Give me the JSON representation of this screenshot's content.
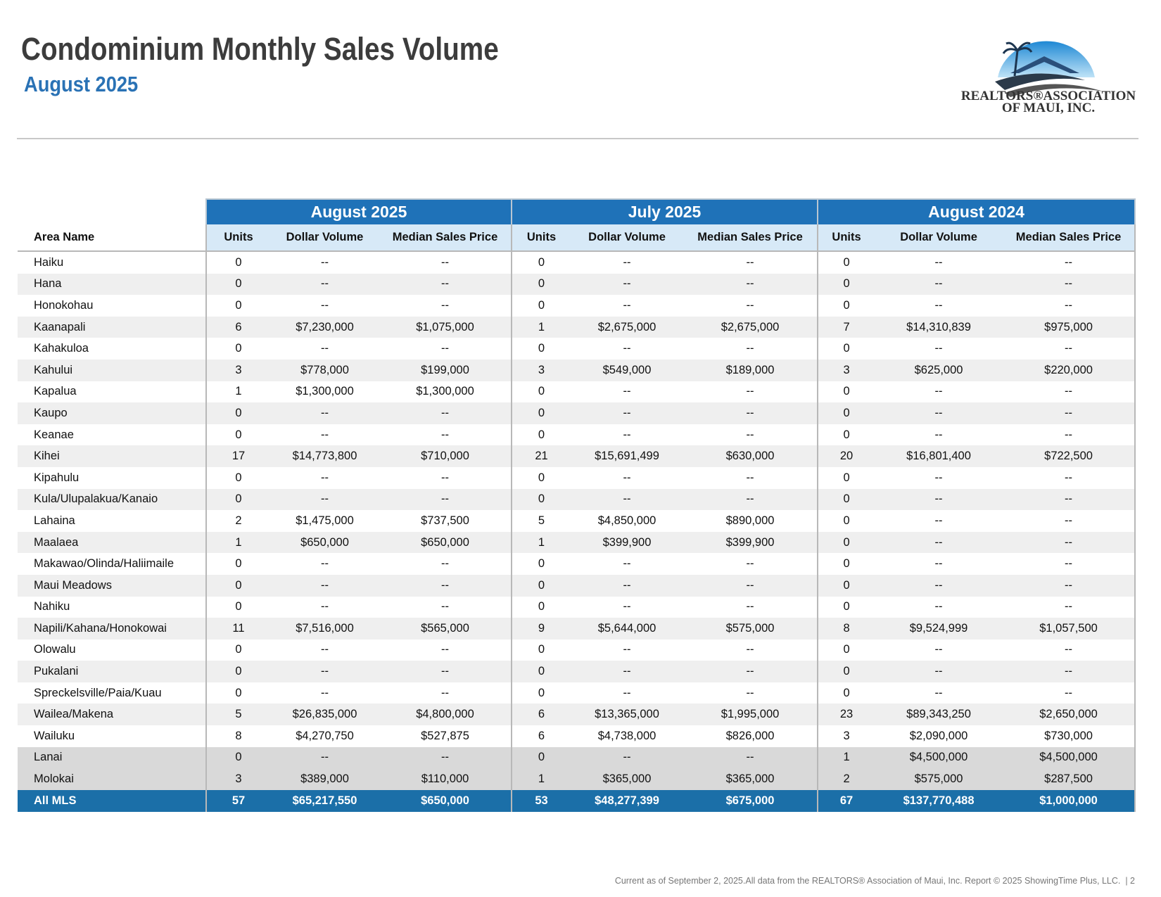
{
  "header": {
    "title": "Condominium Monthly Sales Volume",
    "subtitle": "August 2025"
  },
  "logo": {
    "line1": "REALTORS®ASSOCIATION",
    "line2": "OF MAUI, INC."
  },
  "table": {
    "group_headers": [
      "August 2025",
      "July 2025",
      "August 2024"
    ],
    "column_headers": [
      "Area Name",
      "Units",
      "Dollar Volume",
      "Median Sales Price",
      "Units",
      "Dollar Volume",
      "Median Sales Price",
      "Units",
      "Dollar Volume",
      "Median Sales Price"
    ],
    "rows": [
      [
        "Haiku",
        0,
        "--",
        "--",
        0,
        "--",
        "--",
        0,
        "--",
        "--"
      ],
      [
        "Hana",
        0,
        "--",
        "--",
        0,
        "--",
        "--",
        0,
        "--",
        "--"
      ],
      [
        "Honokohau",
        0,
        "--",
        "--",
        0,
        "--",
        "--",
        0,
        "--",
        "--"
      ],
      [
        "Kaanapali",
        6,
        "$7,230,000",
        "$1,075,000",
        1,
        "$2,675,000",
        "$2,675,000",
        7,
        "$14,310,839",
        "$975,000"
      ],
      [
        "Kahakuloa",
        0,
        "--",
        "--",
        0,
        "--",
        "--",
        0,
        "--",
        "--"
      ],
      [
        "Kahului",
        3,
        "$778,000",
        "$199,000",
        3,
        "$549,000",
        "$189,000",
        3,
        "$625,000",
        "$220,000"
      ],
      [
        "Kapalua",
        1,
        "$1,300,000",
        "$1,300,000",
        0,
        "--",
        "--",
        0,
        "--",
        "--"
      ],
      [
        "Kaupo",
        0,
        "--",
        "--",
        0,
        "--",
        "--",
        0,
        "--",
        "--"
      ],
      [
        "Keanae",
        0,
        "--",
        "--",
        0,
        "--",
        "--",
        0,
        "--",
        "--"
      ],
      [
        "Kihei",
        17,
        "$14,773,800",
        "$710,000",
        21,
        "$15,691,499",
        "$630,000",
        20,
        "$16,801,400",
        "$722,500"
      ],
      [
        "Kipahulu",
        0,
        "--",
        "--",
        0,
        "--",
        "--",
        0,
        "--",
        "--"
      ],
      [
        "Kula/Ulupalakua/Kanaio",
        0,
        "--",
        "--",
        0,
        "--",
        "--",
        0,
        "--",
        "--"
      ],
      [
        "Lahaina",
        2,
        "$1,475,000",
        "$737,500",
        5,
        "$4,850,000",
        "$890,000",
        0,
        "--",
        "--"
      ],
      [
        "Maalaea",
        1,
        "$650,000",
        "$650,000",
        1,
        "$399,900",
        "$399,900",
        0,
        "--",
        "--"
      ],
      [
        "Makawao/Olinda/Haliimaile",
        0,
        "--",
        "--",
        0,
        "--",
        "--",
        0,
        "--",
        "--"
      ],
      [
        "Maui Meadows",
        0,
        "--",
        "--",
        0,
        "--",
        "--",
        0,
        "--",
        "--"
      ],
      [
        "Nahiku",
        0,
        "--",
        "--",
        0,
        "--",
        "--",
        0,
        "--",
        "--"
      ],
      [
        "Napili/Kahana/Honokowai",
        11,
        "$7,516,000",
        "$565,000",
        9,
        "$5,644,000",
        "$575,000",
        8,
        "$9,524,999",
        "$1,057,500"
      ],
      [
        "Olowalu",
        0,
        "--",
        "--",
        0,
        "--",
        "--",
        0,
        "--",
        "--"
      ],
      [
        "Pukalani",
        0,
        "--",
        "--",
        0,
        "--",
        "--",
        0,
        "--",
        "--"
      ],
      [
        "Spreckelsville/Paia/Kuau",
        0,
        "--",
        "--",
        0,
        "--",
        "--",
        0,
        "--",
        "--"
      ],
      [
        "Wailea/Makena",
        5,
        "$26,835,000",
        "$4,800,000",
        6,
        "$13,365,000",
        "$1,995,000",
        23,
        "$89,343,250",
        "$2,650,000"
      ],
      [
        "Wailuku",
        8,
        "$4,270,750",
        "$527,875",
        6,
        "$4,738,000",
        "$826,000",
        3,
        "$2,090,000",
        "$730,000"
      ]
    ],
    "island_rows": [
      [
        "Lanai",
        0,
        "--",
        "--",
        0,
        "--",
        "--",
        1,
        "$4,500,000",
        "$4,500,000"
      ],
      [
        "Molokai",
        3,
        "$389,000",
        "$110,000",
        1,
        "$365,000",
        "$365,000",
        2,
        "$575,000",
        "$287,500"
      ]
    ],
    "total": [
      "All MLS",
      57,
      "$65,217,550",
      "$650,000",
      53,
      "$48,277,399",
      "$675,000",
      67,
      "$137,770,488",
      "$1,000,000"
    ]
  },
  "footer": {
    "text": "Current as of September 2, 2025.All data from the REALTORS® Association of Maui, Inc. Report © 2025 ShowingTime Plus, LLC.",
    "page": "| 2"
  }
}
